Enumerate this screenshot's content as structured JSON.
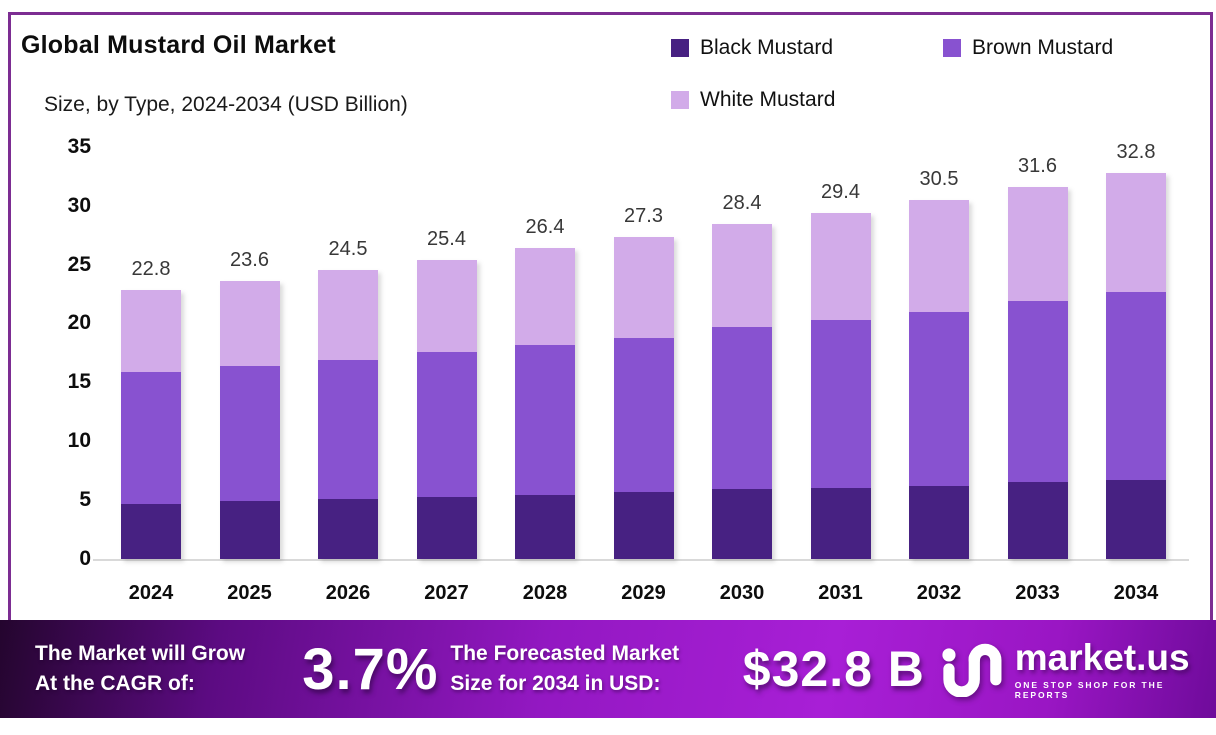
{
  "header": {
    "title": "Global Mustard Oil Market",
    "subtitle": "Size, by Type, 2024-2034 (USD Billion)"
  },
  "colors": {
    "black_mustard": "#472182",
    "brown_mustard": "#8852d0",
    "white_mustard": "#d2abe9",
    "frame_border": "#7c2d92",
    "footer_gradient_start": "#24052e",
    "footer_gradient_mid": "#a81fd6",
    "footer_gradient_end": "#6f0b9b"
  },
  "legend": [
    {
      "label": "Black Mustard",
      "color": "#472182"
    },
    {
      "label": "Brown Mustard",
      "color": "#8852d0"
    },
    {
      "label": "White Mustard",
      "color": "#d2abe9"
    }
  ],
  "chart_data": {
    "type": "bar",
    "stacked": true,
    "title": "Global Mustard Oil Market",
    "subtitle": "Size, by Type, 2024-2034 (USD Billion)",
    "xlabel": "",
    "ylabel": "USD Billion",
    "ylim": [
      0,
      35
    ],
    "yticks": [
      0,
      5,
      10,
      15,
      20,
      25,
      30,
      35
    ],
    "grid": false,
    "legend_position": "top-right",
    "categories": [
      "2024",
      "2025",
      "2026",
      "2027",
      "2028",
      "2029",
      "2030",
      "2031",
      "2032",
      "2033",
      "2034"
    ],
    "series": [
      {
        "name": "Black Mustard",
        "color": "#472182",
        "values": [
          4.7,
          4.9,
          5.1,
          5.3,
          5.4,
          5.7,
          5.9,
          6.0,
          6.2,
          6.5,
          6.7
        ]
      },
      {
        "name": "Brown Mustard",
        "color": "#8852d0",
        "values": [
          11.2,
          11.5,
          11.8,
          12.3,
          12.8,
          13.1,
          13.8,
          14.3,
          14.8,
          15.4,
          16.0
        ]
      },
      {
        "name": "White Mustard",
        "color": "#d2abe9",
        "values": [
          6.9,
          7.2,
          7.6,
          7.8,
          8.2,
          8.5,
          8.7,
          9.1,
          9.5,
          9.7,
          10.1
        ]
      }
    ],
    "totals": [
      22.8,
      23.6,
      24.5,
      25.4,
      26.4,
      27.3,
      28.4,
      29.4,
      30.5,
      31.6,
      32.8
    ]
  },
  "footer": {
    "cagr_line1": "The Market will Grow",
    "cagr_line2": "At the CAGR of:",
    "cagr_value": "3.7%",
    "forecast_line1": "The Forecasted Market",
    "forecast_line2": "Size for 2034 in USD:",
    "forecast_value": "$32.8 B",
    "logo_name": "market.us",
    "logo_tagline": "ONE STOP SHOP FOR THE REPORTS"
  }
}
